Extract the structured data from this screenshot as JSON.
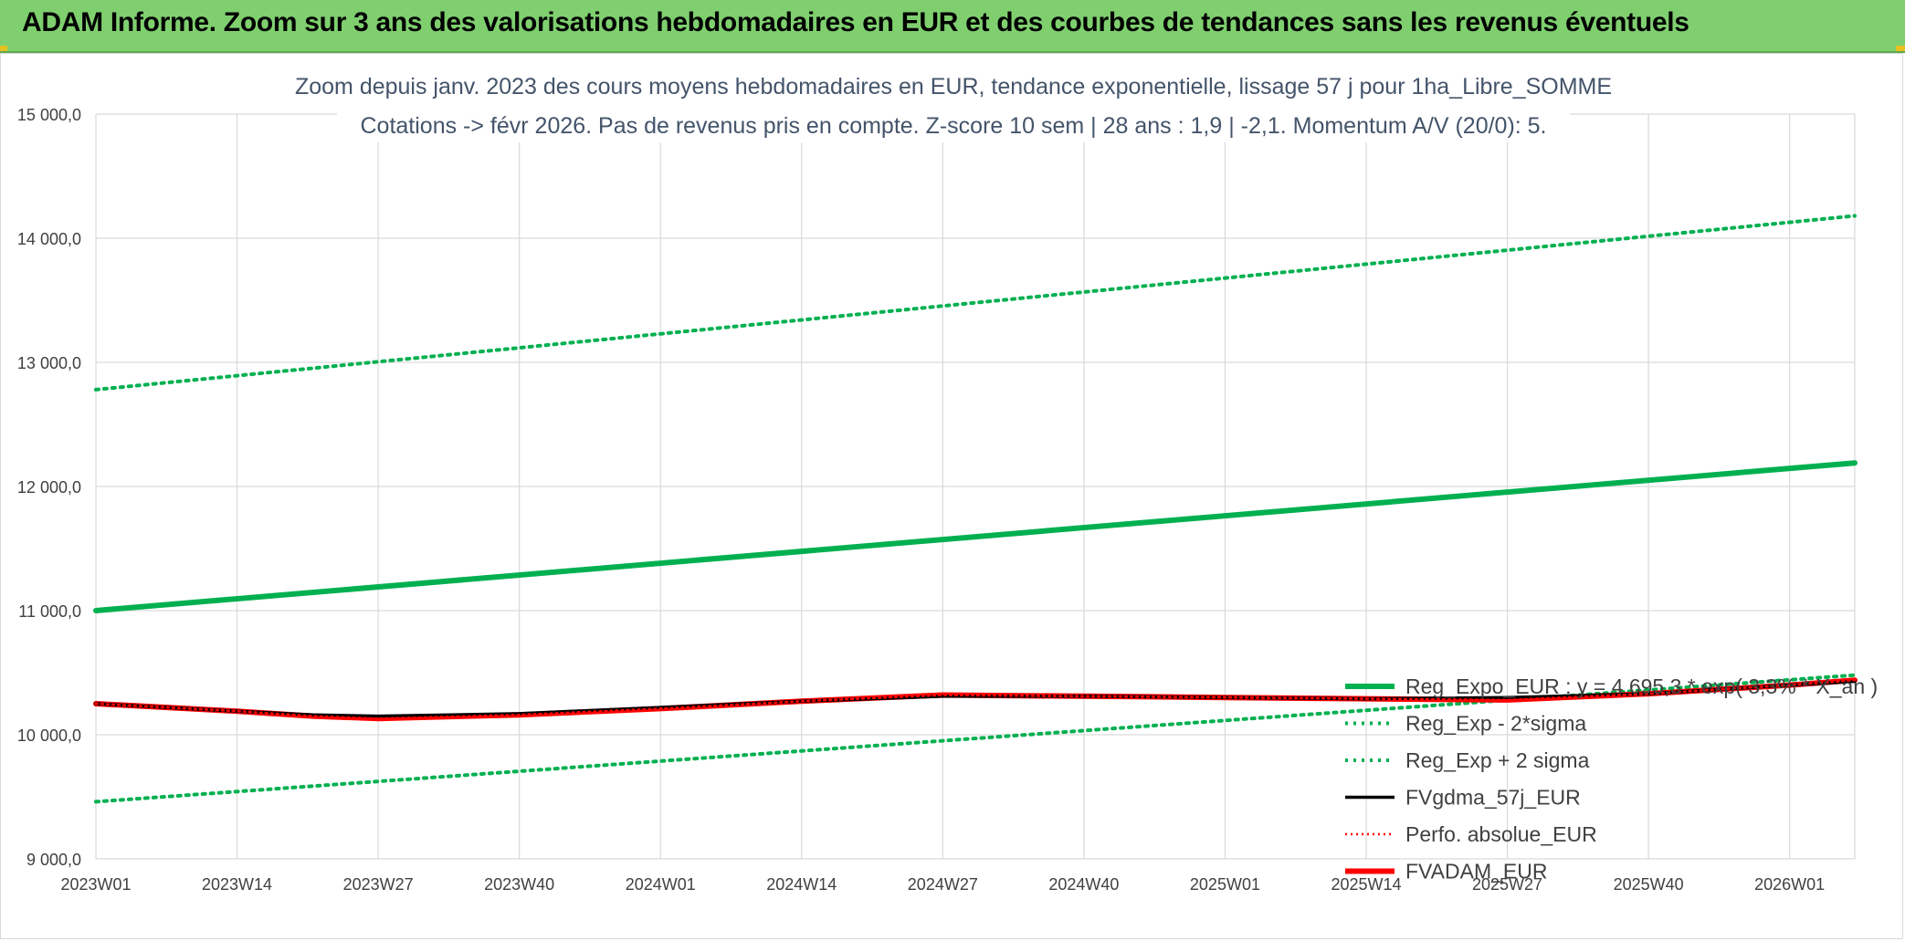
{
  "header": {
    "title": "ADAM Informe. Zoom sur 3 ans des valorisations hebdomadaires en EUR et des courbes de tendances sans les revenus éventuels"
  },
  "colors": {
    "header_bg": "#7fcf6f",
    "trend": "#00b050",
    "band": "#00b050",
    "smooth": "#000000",
    "perf": "#ff0000",
    "fvadam": "#ff0000",
    "grid": "#d9d9d9"
  },
  "chart_data": {
    "type": "line",
    "title_lines": [
      "Zoom depuis janv. 2023 des cours moyens hebdomadaires en EUR, tendance exponentielle, lissage 57 j pour 1ha_Libre_SOMME",
      "Cotations -> févr 2026. Pas de revenus pris en compte. Z-score 10 sem | 28 ans : 1,9 | -2,1. Momentum A/V (20/0): 5."
    ],
    "xlabel": "",
    "ylabel": "",
    "ylim": [
      9000,
      15000
    ],
    "yticks": [
      9000,
      10000,
      11000,
      12000,
      13000,
      14000,
      15000
    ],
    "ytick_labels": [
      "9 000,0",
      "10 000,0",
      "11 000,0",
      "12 000,0",
      "13 000,0",
      "14 000,0",
      "15 000,0"
    ],
    "x_range_weeks": [
      0,
      162
    ],
    "xtick_weeks": [
      0,
      13,
      26,
      39,
      52,
      65,
      78,
      91,
      104,
      117,
      130,
      143,
      156
    ],
    "xtick_labels": [
      "2023W01",
      "2023W14",
      "2023W27",
      "2023W40",
      "2024W01",
      "2024W14",
      "2024W27",
      "2024W40",
      "2025W01",
      "2025W14",
      "2025W27",
      "2025W40",
      "2026W01"
    ],
    "grid": true,
    "legend_position": "bottom-right",
    "series": [
      {
        "name": "Reg_Expo_EUR : y = 4 695,3 * exp( 3,3% *  X_an )",
        "style": "solid-thick",
        "x": [
          0,
          162
        ],
        "y": [
          11000,
          12190
        ]
      },
      {
        "name": "Reg_Exp - 2*sigma",
        "style": "dotted",
        "x": [
          0,
          162
        ],
        "y": [
          9460,
          10480
        ]
      },
      {
        "name": "Reg_Exp + 2 sigma",
        "style": "dotted",
        "x": [
          0,
          162
        ],
        "y": [
          12780,
          14180
        ]
      },
      {
        "name": "FVgdma_57j_EUR",
        "style": "solid-thin",
        "x": [
          0,
          13,
          20,
          26,
          39,
          52,
          65,
          78,
          91,
          104,
          117,
          130,
          143,
          156,
          162
        ],
        "y": [
          10250,
          10190,
          10160,
          10150,
          10170,
          10220,
          10270,
          10310,
          10310,
          10300,
          10290,
          10300,
          10330,
          10400,
          10430
        ]
      },
      {
        "name": "Perfo. absolue_EUR",
        "style": "dotted-thin",
        "x": [
          0,
          13,
          20,
          26,
          39,
          52,
          65,
          78,
          91,
          104,
          117,
          130,
          143,
          156,
          162
        ],
        "y": [
          10250,
          10190,
          10150,
          10130,
          10160,
          10210,
          10270,
          10320,
          10310,
          10300,
          10290,
          10280,
          10330,
          10400,
          10440
        ]
      },
      {
        "name": "FVADAM_EUR",
        "style": "solid-thick",
        "x": [
          0,
          13,
          20,
          26,
          39,
          52,
          65,
          78,
          91,
          104,
          117,
          130,
          143,
          156,
          162
        ],
        "y": [
          10250,
          10190,
          10150,
          10130,
          10160,
          10210,
          10270,
          10320,
          10310,
          10300,
          10290,
          10280,
          10330,
          10400,
          10440
        ]
      }
    ]
  }
}
